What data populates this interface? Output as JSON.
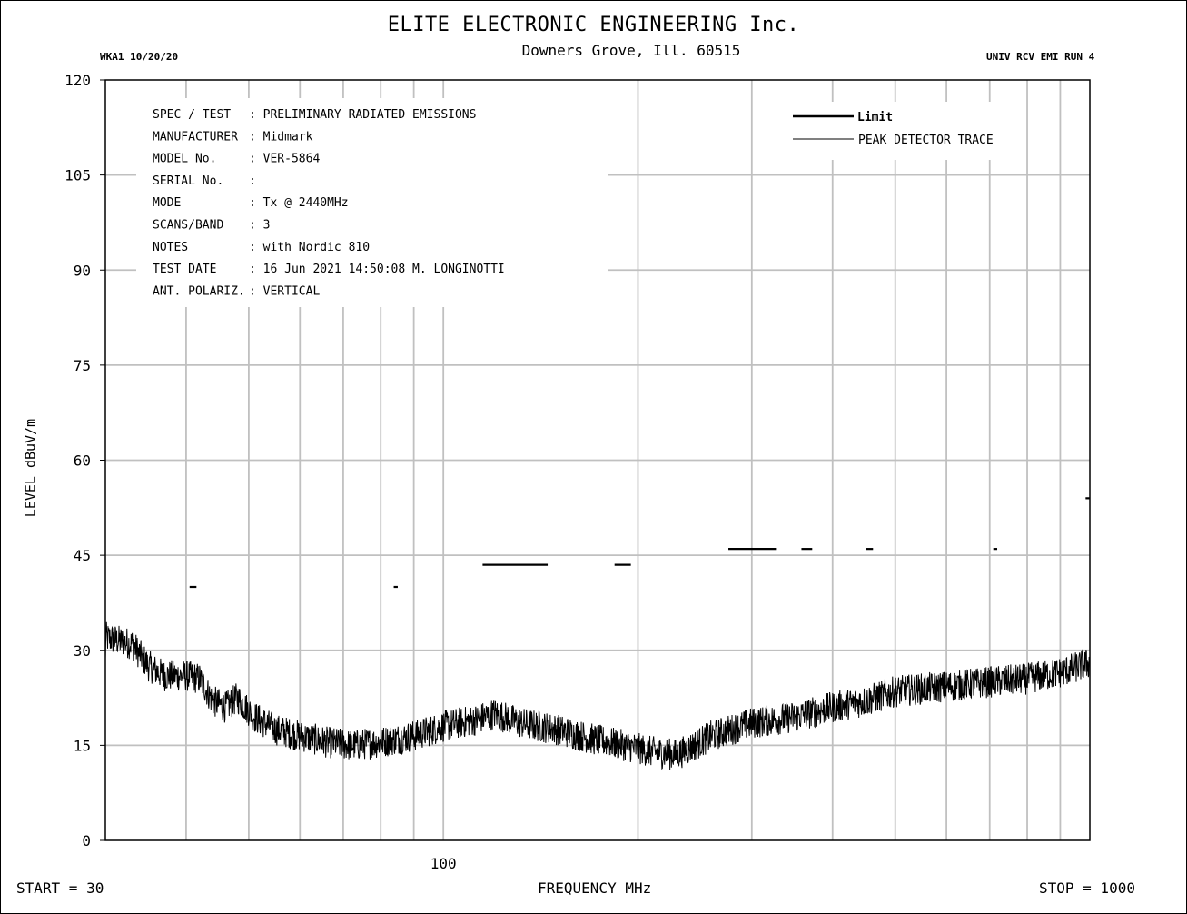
{
  "header": {
    "company": "ELITE ELECTRONIC ENGINEERING Inc.",
    "address": "Downers Grove, Ill. 60515",
    "left_tag": "WKA1  10/20/20",
    "right_tag": "UNIV RCV EMI  RUN 4"
  },
  "footer": {
    "start": "START = 30",
    "stop": "STOP = 1000"
  },
  "info_block": [
    {
      "key": "SPEC / TEST",
      "value": ": PRELIMINARY RADIATED EMISSIONS"
    },
    {
      "key": "MANUFACTURER",
      "value": ": Midmark"
    },
    {
      "key": "MODEL No.",
      "value": ": VER-5864"
    },
    {
      "key": "SERIAL No.",
      "value": ":"
    },
    {
      "key": "MODE",
      "value": ": Tx @ 2440MHz"
    },
    {
      "key": "SCANS/BAND",
      "value": ": 3"
    },
    {
      "key": "NOTES",
      "value": ": with Nordic 810"
    },
    {
      "key": "TEST DATE",
      "value": ": 16 Jun 2021 14:50:08  M. LONGINOTTI"
    },
    {
      "key": "ANT. POLARIZ.",
      "value": ": VERTICAL"
    }
  ],
  "chart_data": {
    "type": "line",
    "xlabel": "FREQUENCY  MHz",
    "ylabel": "LEVEL  dBuV/m",
    "x_scale": "log",
    "xlim": [
      30,
      1000
    ],
    "ylim": [
      0,
      120
    ],
    "x_tick_labels": [
      {
        "value": 100,
        "label": "100"
      }
    ],
    "y_ticks": [
      0,
      15,
      30,
      45,
      60,
      75,
      90,
      105,
      120
    ],
    "grid": true,
    "legend": {
      "placement": "top-right",
      "entries": [
        {
          "name": "Limit",
          "style": "thick"
        },
        {
          "name": "PEAK  DETECTOR TRACE",
          "style": "thin"
        }
      ]
    },
    "series": [
      {
        "name": "Limit",
        "segments": [
          {
            "x": [
              40.5,
              41.5
            ],
            "y": 40.0
          },
          {
            "x": [
              83.8,
              85.0
            ],
            "y": 40.0
          },
          {
            "x": [
              115,
              145
            ],
            "y": 43.5
          },
          {
            "x": [
              184,
              195
            ],
            "y": 43.5
          },
          {
            "x": [
              276,
              328
            ],
            "y": 46.0
          },
          {
            "x": [
              358,
              372
            ],
            "y": 46.0
          },
          {
            "x": [
              450,
              462
            ],
            "y": 46.0
          },
          {
            "x": [
              709,
              719
            ],
            "y": 46.0
          },
          {
            "x": [
              985,
              1000
            ],
            "y": 54.0
          }
        ]
      },
      {
        "name": "PEAK  DETECTOR TRACE",
        "points": [
          [
            30,
            32
          ],
          [
            33,
            31
          ],
          [
            35,
            27.5
          ],
          [
            37,
            26
          ],
          [
            40,
            26
          ],
          [
            42,
            25.5
          ],
          [
            44,
            22
          ],
          [
            46,
            21
          ],
          [
            48,
            22.5
          ],
          [
            51,
            19.5
          ],
          [
            55,
            17.5
          ],
          [
            60,
            16.5
          ],
          [
            66,
            15.5
          ],
          [
            72,
            15
          ],
          [
            80,
            15.5
          ],
          [
            90,
            16.5
          ],
          [
            100,
            18
          ],
          [
            112,
            19
          ],
          [
            120,
            20
          ],
          [
            132,
            18.5
          ],
          [
            150,
            17.5
          ],
          [
            170,
            16
          ],
          [
            190,
            15
          ],
          [
            210,
            14
          ],
          [
            230,
            13.5
          ],
          [
            260,
            16.5
          ],
          [
            300,
            18.5
          ],
          [
            350,
            19.5
          ],
          [
            400,
            21
          ],
          [
            450,
            22
          ],
          [
            500,
            23.5
          ],
          [
            560,
            24
          ],
          [
            630,
            24.5
          ],
          [
            700,
            25
          ],
          [
            800,
            25.5
          ],
          [
            900,
            26.5
          ],
          [
            1000,
            28
          ]
        ],
        "noise_amplitude_db": 2.5
      }
    ]
  }
}
